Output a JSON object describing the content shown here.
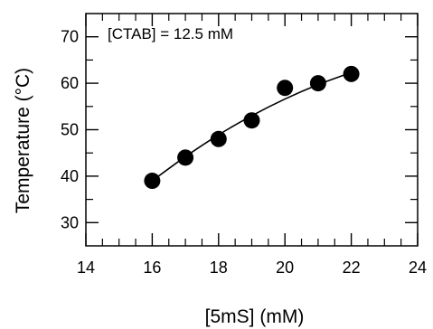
{
  "chart_data": {
    "type": "scatter",
    "title": "",
    "xlabel": "[5mS]  (mM)",
    "ylabel": "Temperature (°C)",
    "xlim": [
      14,
      24
    ],
    "ylim": [
      25,
      75
    ],
    "x_ticks": [
      14,
      16,
      18,
      20,
      22,
      24
    ],
    "y_ticks": [
      30,
      40,
      50,
      60,
      70
    ],
    "x_minor_step": 0.5,
    "y_minor_step": 5,
    "annotation": "[CTAB] = 12.5 mM",
    "grid": false,
    "series": [
      {
        "x": [
          16,
          17,
          18,
          19,
          20,
          21,
          22
        ],
        "y": [
          39,
          44,
          48,
          52,
          59,
          60,
          62
        ],
        "marker": "filled-circle",
        "color": "#000000"
      }
    ],
    "fit_curve": {
      "type": "smooth-fit",
      "x": [
        16,
        17,
        18,
        19,
        20,
        21,
        22
      ],
      "y": [
        39,
        44.2,
        48.9,
        53,
        56.6,
        59.7,
        62.3
      ],
      "color": "#000000"
    }
  }
}
